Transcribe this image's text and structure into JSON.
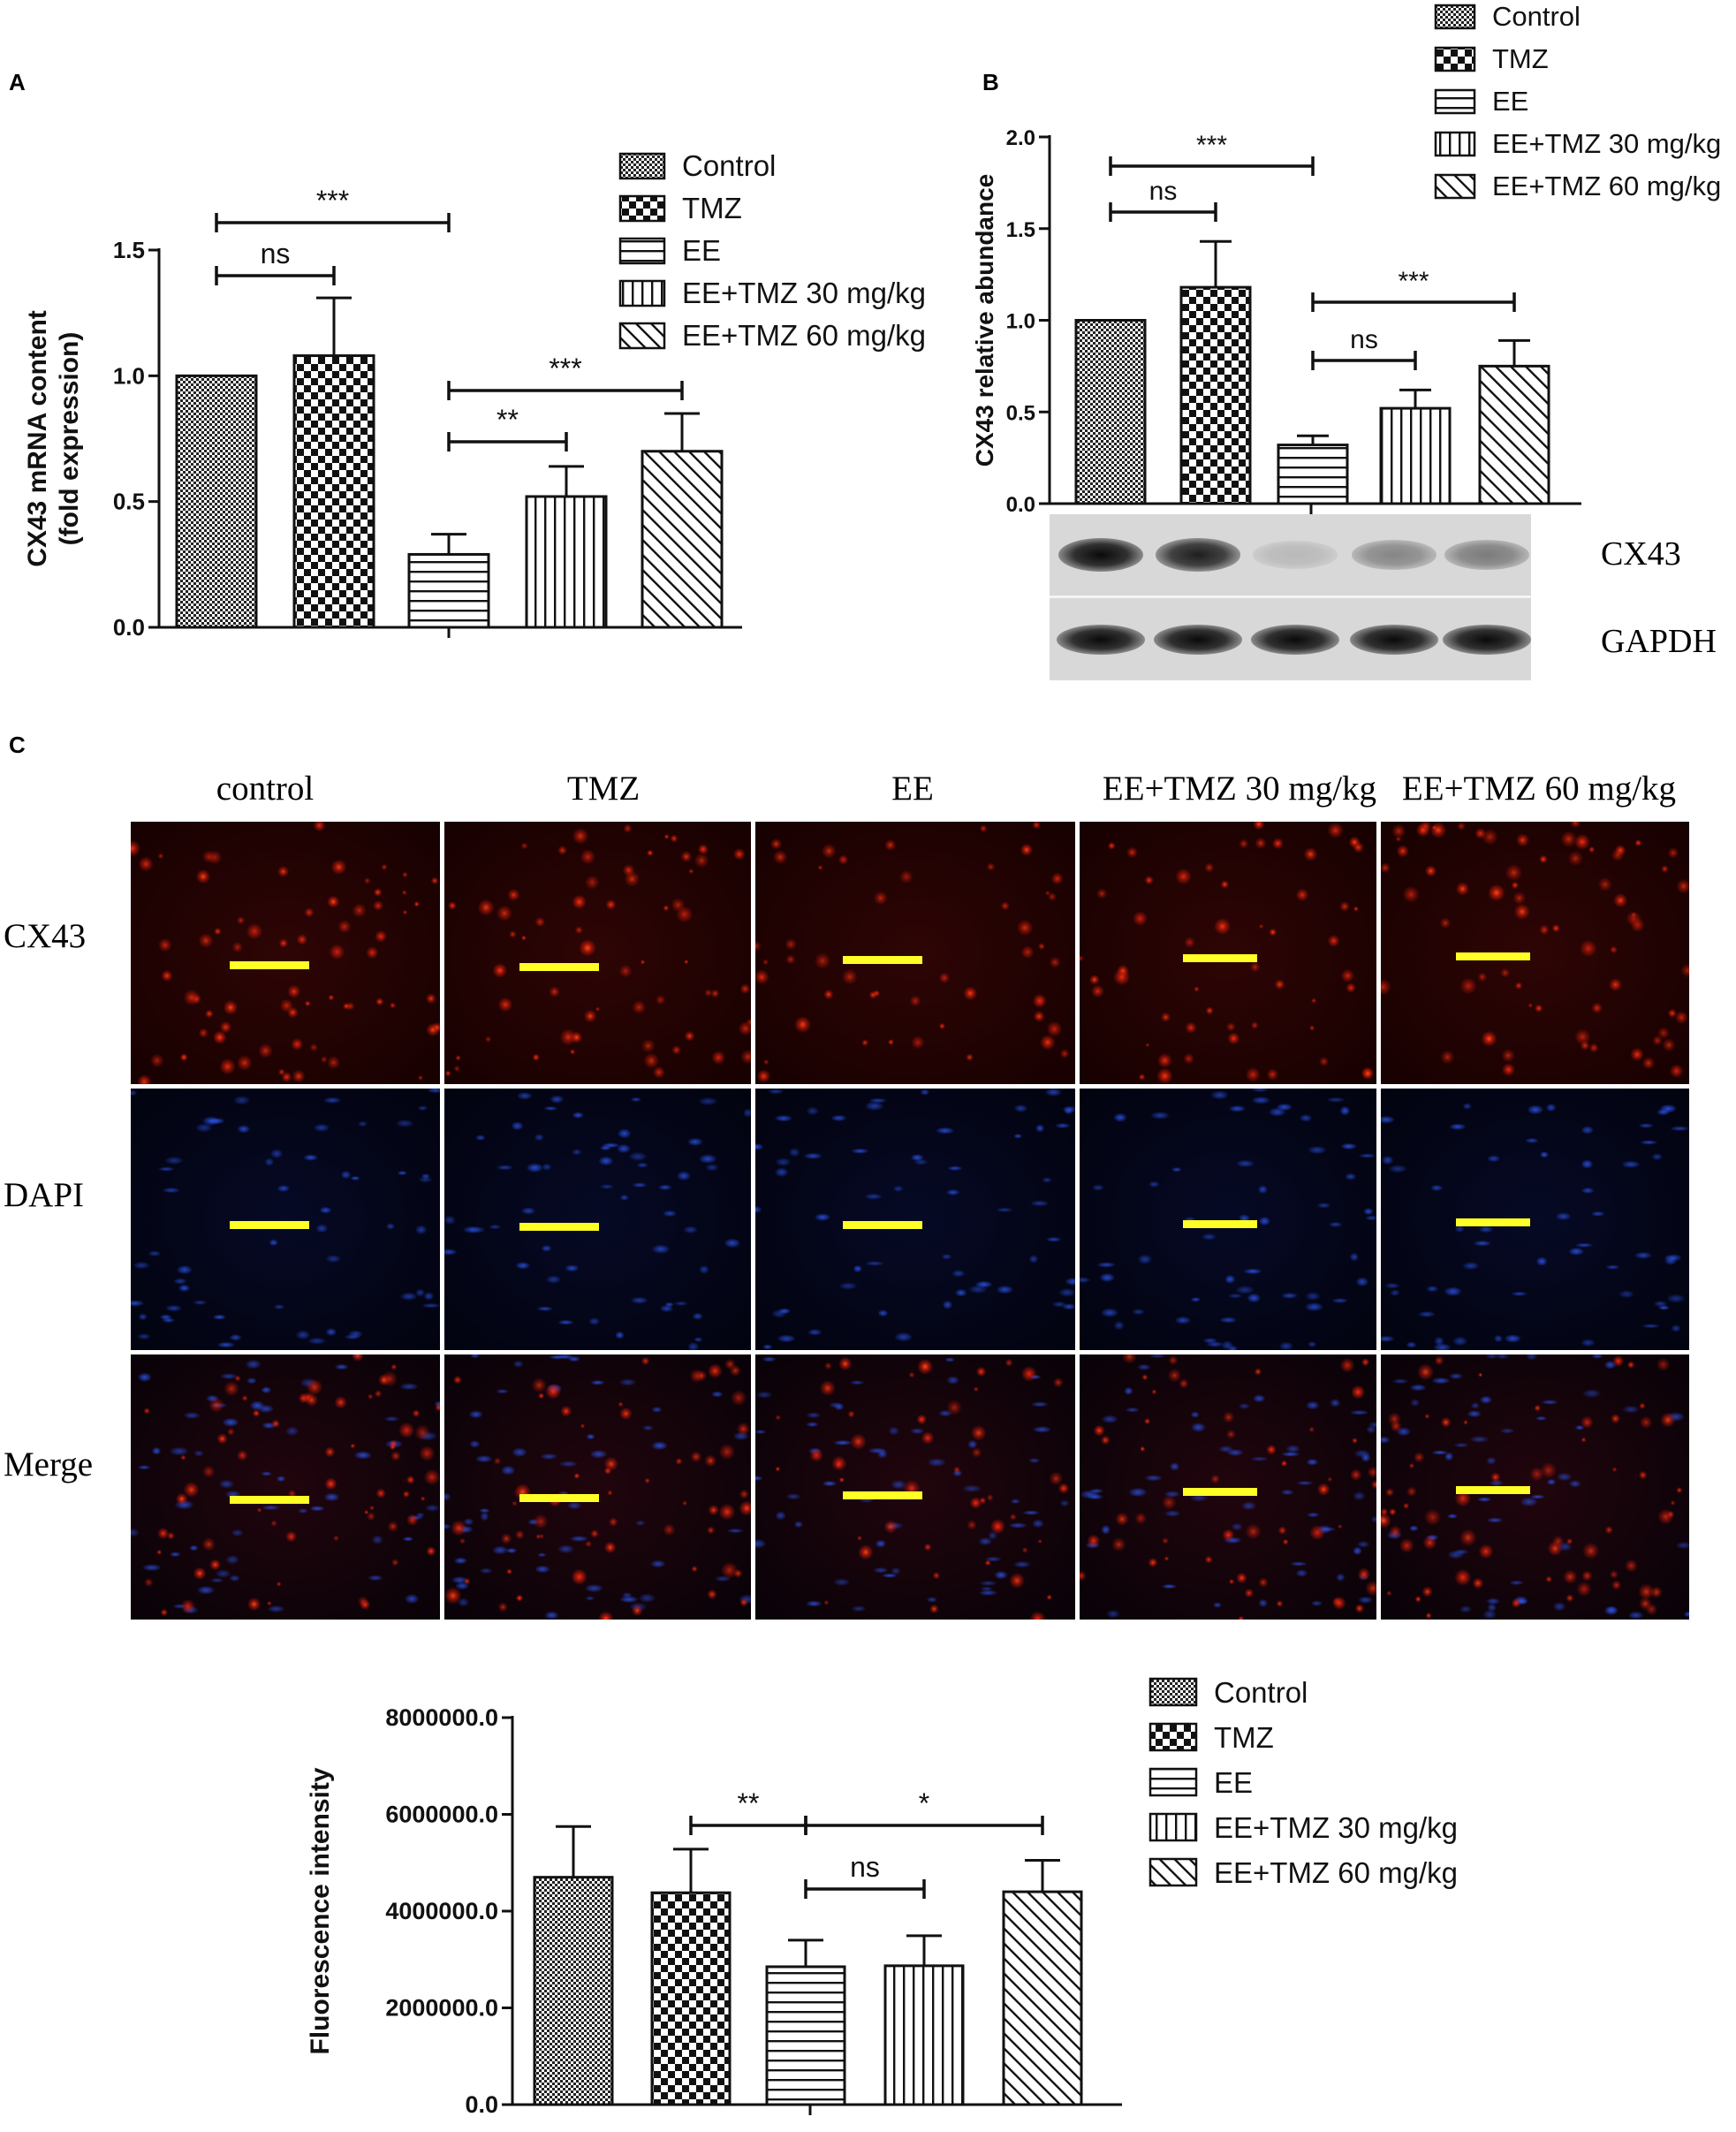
{
  "panels": {
    "A": "A",
    "B": "B",
    "C": "C"
  },
  "colors": {
    "bar_stroke": "#111111",
    "red_channel": "#ff2a10",
    "blue_channel": "#2a60ff",
    "scale_bar": "#ffff26"
  },
  "chart_data": [
    {
      "id": "chartA",
      "type": "bar",
      "ylabel": "CX43 mRNA content",
      "ylabel2": "(fold expression)",
      "ylim": [
        0,
        1.5
      ],
      "yticks": [
        "0.0",
        "0.5",
        "1.0",
        "1.5"
      ],
      "yticks_num": [
        0,
        0.5,
        1.0,
        1.5
      ],
      "categories": [
        "Control",
        "TMZ",
        "EE",
        "EE+TMZ 30 mg/kg",
        "EE+TMZ 60 mg/kg"
      ],
      "patterns": [
        "dots",
        "checker",
        "hlines",
        "vlines",
        "diag"
      ],
      "values": [
        1.0,
        1.08,
        0.29,
        0.52,
        0.7
      ],
      "errors": [
        0.0,
        0.23,
        0.08,
        0.12,
        0.15
      ],
      "legend_position": "top-right",
      "annotations": [
        {
          "from": 0,
          "to": 1,
          "label": "ns"
        },
        {
          "from": 0,
          "to": 2,
          "label": "***"
        },
        {
          "from": 2,
          "to": 3,
          "label": "**"
        },
        {
          "from": 2,
          "to": 4,
          "label": "***"
        }
      ]
    },
    {
      "id": "chartB",
      "type": "bar",
      "ylabel": "CX43 relative abundance",
      "ylim": [
        0,
        2.0
      ],
      "yticks": [
        "0.0",
        "0.5",
        "1.0",
        "1.5",
        "2.0"
      ],
      "yticks_num": [
        0,
        0.5,
        1.0,
        1.5,
        2.0
      ],
      "categories": [
        "Control",
        "TMZ",
        "EE",
        "EE+TMZ 30 mg/kg",
        "EE+TMZ 60 mg/kg"
      ],
      "patterns": [
        "dots",
        "checker",
        "hlines",
        "vlines",
        "diag"
      ],
      "values": [
        1.0,
        1.18,
        0.32,
        0.52,
        0.75
      ],
      "errors": [
        0.0,
        0.25,
        0.05,
        0.1,
        0.14
      ],
      "legend_position": "top-right",
      "annotations": [
        {
          "from": 0,
          "to": 1,
          "label": "ns"
        },
        {
          "from": 0,
          "to": 2,
          "label": "***"
        },
        {
          "from": 2,
          "to": 3,
          "label": "ns"
        },
        {
          "from": 2,
          "to": 4,
          "label": "***"
        }
      ]
    },
    {
      "id": "chartC",
      "type": "bar",
      "ylabel": "Fluorescence intensity",
      "ylim": [
        0,
        8000000
      ],
      "yticks": [
        "0.0",
        "2000000.0",
        "4000000.0",
        "6000000.0",
        "8000000.0"
      ],
      "yticks_num": [
        0,
        2000000,
        4000000,
        6000000,
        8000000
      ],
      "categories": [
        "Control",
        "TMZ",
        "EE",
        "EE+TMZ 30 mg/kg",
        "EE+TMZ 60 mg/kg"
      ],
      "patterns": [
        "dots",
        "checker",
        "hlines",
        "vlines",
        "diag"
      ],
      "values": [
        4700000,
        4380000,
        2850000,
        2870000,
        4400000
      ],
      "errors": [
        1050000,
        900000,
        550000,
        620000,
        650000
      ],
      "legend_position": "top-right",
      "annotations": [
        {
          "from": 1,
          "to": 2,
          "label": "**"
        },
        {
          "from": 2,
          "to": 3,
          "label": "ns"
        },
        {
          "from": 2,
          "to": 4,
          "label": "*"
        }
      ]
    }
  ],
  "blot": {
    "bands": [
      "CX43",
      "GAPDH"
    ],
    "cx43_intensity": [
      1.0,
      0.9,
      0.15,
      0.4,
      0.45
    ],
    "gapdh_intensity": [
      1.0,
      1.0,
      1.0,
      1.0,
      1.0
    ]
  },
  "micro": {
    "columns": [
      "control",
      "TMZ",
      "EE",
      "EE+TMZ 30 mg/kg",
      "EE+TMZ 60 mg/kg"
    ],
    "rows": [
      "CX43",
      "DAPI",
      "Merge"
    ],
    "red_density": [
      0.95,
      0.85,
      0.65,
      0.75,
      0.95
    ]
  }
}
